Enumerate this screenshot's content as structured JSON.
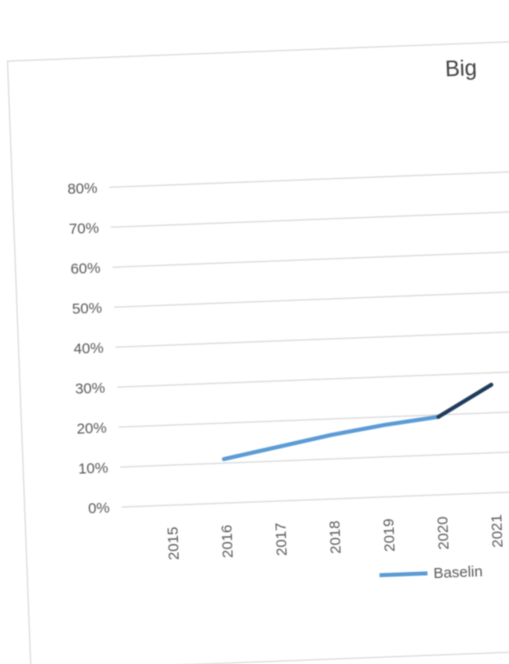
{
  "chart_data": {
    "type": "line",
    "title": "Big",
    "categories": [
      "2015",
      "2016",
      "2017",
      "2018",
      "2019",
      "2020",
      "2021"
    ],
    "y_tick_labels": [
      "0%",
      "10%",
      "20%",
      "30%",
      "40%",
      "50%",
      "60%",
      "70%",
      "80%"
    ],
    "ylim": [
      0,
      80
    ],
    "grid": true,
    "legend_position": "bottom",
    "series": [
      {
        "name": "Baselin",
        "x": [
          "2016",
          "2017",
          "2018",
          "2019",
          "2020"
        ],
        "values": [
          11,
          13.5,
          16,
          18,
          19.5
        ],
        "color": "#5b9bd5"
      },
      {
        "name": "",
        "x": [
          "2020",
          "2021"
        ],
        "values": [
          19.5,
          27
        ],
        "color": "#1f3b5a"
      }
    ]
  }
}
